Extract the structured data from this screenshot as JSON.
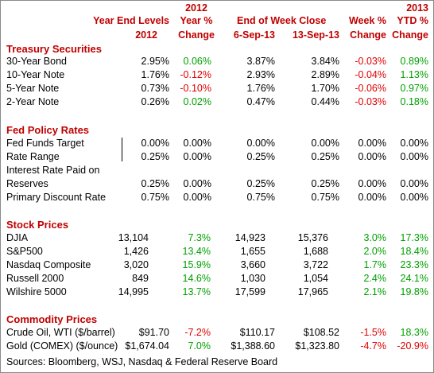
{
  "header": {
    "year_end_levels": "Year End Levels",
    "year_2012": "2012",
    "col2012_top": "2012",
    "year_pct": "Year %",
    "change_a": "Change",
    "end_of_week_close": "End of Week Close",
    "date_a": "6-Sep-13",
    "date_b": "13-Sep-13",
    "week_pct": "Week %",
    "change_b": "Change",
    "col2013_top": "2013",
    "ytd_pct": "YTD %",
    "change_c": "Change"
  },
  "sections": [
    {
      "title": "Treasury Securities",
      "rows": [
        {
          "label": "30-Year Bond",
          "ye2012": "2.95%",
          "ychg": "0.06%",
          "w1": "3.87%",
          "w2": "3.84%",
          "wchg": "-0.03%",
          "ytd": "0.89%"
        },
        {
          "label": "10-Year Note",
          "ye2012": "1.76%",
          "ychg": "-0.12%",
          "w1": "2.93%",
          "w2": "2.89%",
          "wchg": "-0.04%",
          "ytd": "1.13%"
        },
        {
          "label": "5-Year Note",
          "ye2012": "0.73%",
          "ychg": "-0.10%",
          "w1": "1.76%",
          "w2": "1.70%",
          "wchg": "-0.06%",
          "ytd": "0.97%"
        },
        {
          "label": "2-Year Note",
          "ye2012": "0.26%",
          "ychg": "0.02%",
          "w1": "0.47%",
          "w2": "0.44%",
          "wchg": "-0.03%",
          "ytd": "0.18%"
        }
      ]
    },
    {
      "title": "Fed Policy Rates",
      "rows": [
        {
          "label": "Fed Funds Target",
          "ye2012": "0.00%",
          "ychg": "0.00%",
          "w1": "0.00%",
          "w2": "0.00%",
          "wchg": "0.00%",
          "ytd": "0.00%"
        },
        {
          "label": "Rate Range",
          "ye2012": "0.25%",
          "ychg": "0.00%",
          "w1": "0.25%",
          "w2": "0.25%",
          "wchg": "0.00%",
          "ytd": "0.00%"
        },
        {
          "label": "Interest Rate Paid on",
          "ye2012": "",
          "ychg": "",
          "w1": "",
          "w2": "",
          "wchg": "",
          "ytd": ""
        },
        {
          "label": "Reserves",
          "ye2012": "0.25%",
          "ychg": "0.00%",
          "w1": "0.25%",
          "w2": "0.25%",
          "wchg": "0.00%",
          "ytd": "0.00%"
        },
        {
          "label": "Primary Discount Rate",
          "ye2012": "0.75%",
          "ychg": "0.00%",
          "w1": "0.75%",
          "w2": "0.75%",
          "wchg": "0.00%",
          "ytd": "0.00%"
        }
      ]
    },
    {
      "title": "Stock Prices",
      "rows": [
        {
          "label": "DJIA",
          "ye2012": "13,104",
          "ychg": "7.3%",
          "w1": "14,923",
          "w2": "15,376",
          "wchg": "3.0%",
          "ytd": "17.3%"
        },
        {
          "label": "S&P500",
          "ye2012": "1,426",
          "ychg": "13.4%",
          "w1": "1,655",
          "w2": "1,688",
          "wchg": "2.0%",
          "ytd": "18.4%"
        },
        {
          "label": "Nasdaq Composite",
          "ye2012": "3,020",
          "ychg": "15.9%",
          "w1": "3,660",
          "w2": "3,722",
          "wchg": "1.7%",
          "ytd": "23.3%"
        },
        {
          "label": "Russell 2000",
          "ye2012": "849",
          "ychg": "14.6%",
          "w1": "1,030",
          "w2": "1,054",
          "wchg": "2.4%",
          "ytd": "24.1%"
        },
        {
          "label": "Wilshire 5000",
          "ye2012": "14,995",
          "ychg": "13.7%",
          "w1": "17,599",
          "w2": "17,965",
          "wchg": "2.1%",
          "ytd": "19.8%"
        }
      ]
    },
    {
      "title": "Commodity Prices",
      "rows": [
        {
          "label": "Crude Oil, WTI ($/barrel)",
          "ye2012": "$91.70",
          "ychg": "-7.2%",
          "w1": "$110.17",
          "w2": "$108.52",
          "wchg": "-1.5%",
          "ytd": "18.3%"
        },
        {
          "label": "Gold (COMEX) ($/ounce)",
          "ye2012": "$1,674.04",
          "ychg": "7.0%",
          "w1": "$1,388.60",
          "w2": "$1,323.80",
          "wchg": "-4.7%",
          "ytd": "-20.9%"
        }
      ]
    }
  ],
  "footer": {
    "sources": "Sources: Bloomberg, WSJ, Nasdaq & Federal Reserve Board"
  },
  "colors": {
    "header": "#c00000",
    "positive": "#00a000",
    "negative": "#e00000",
    "neutral": "#000000"
  }
}
